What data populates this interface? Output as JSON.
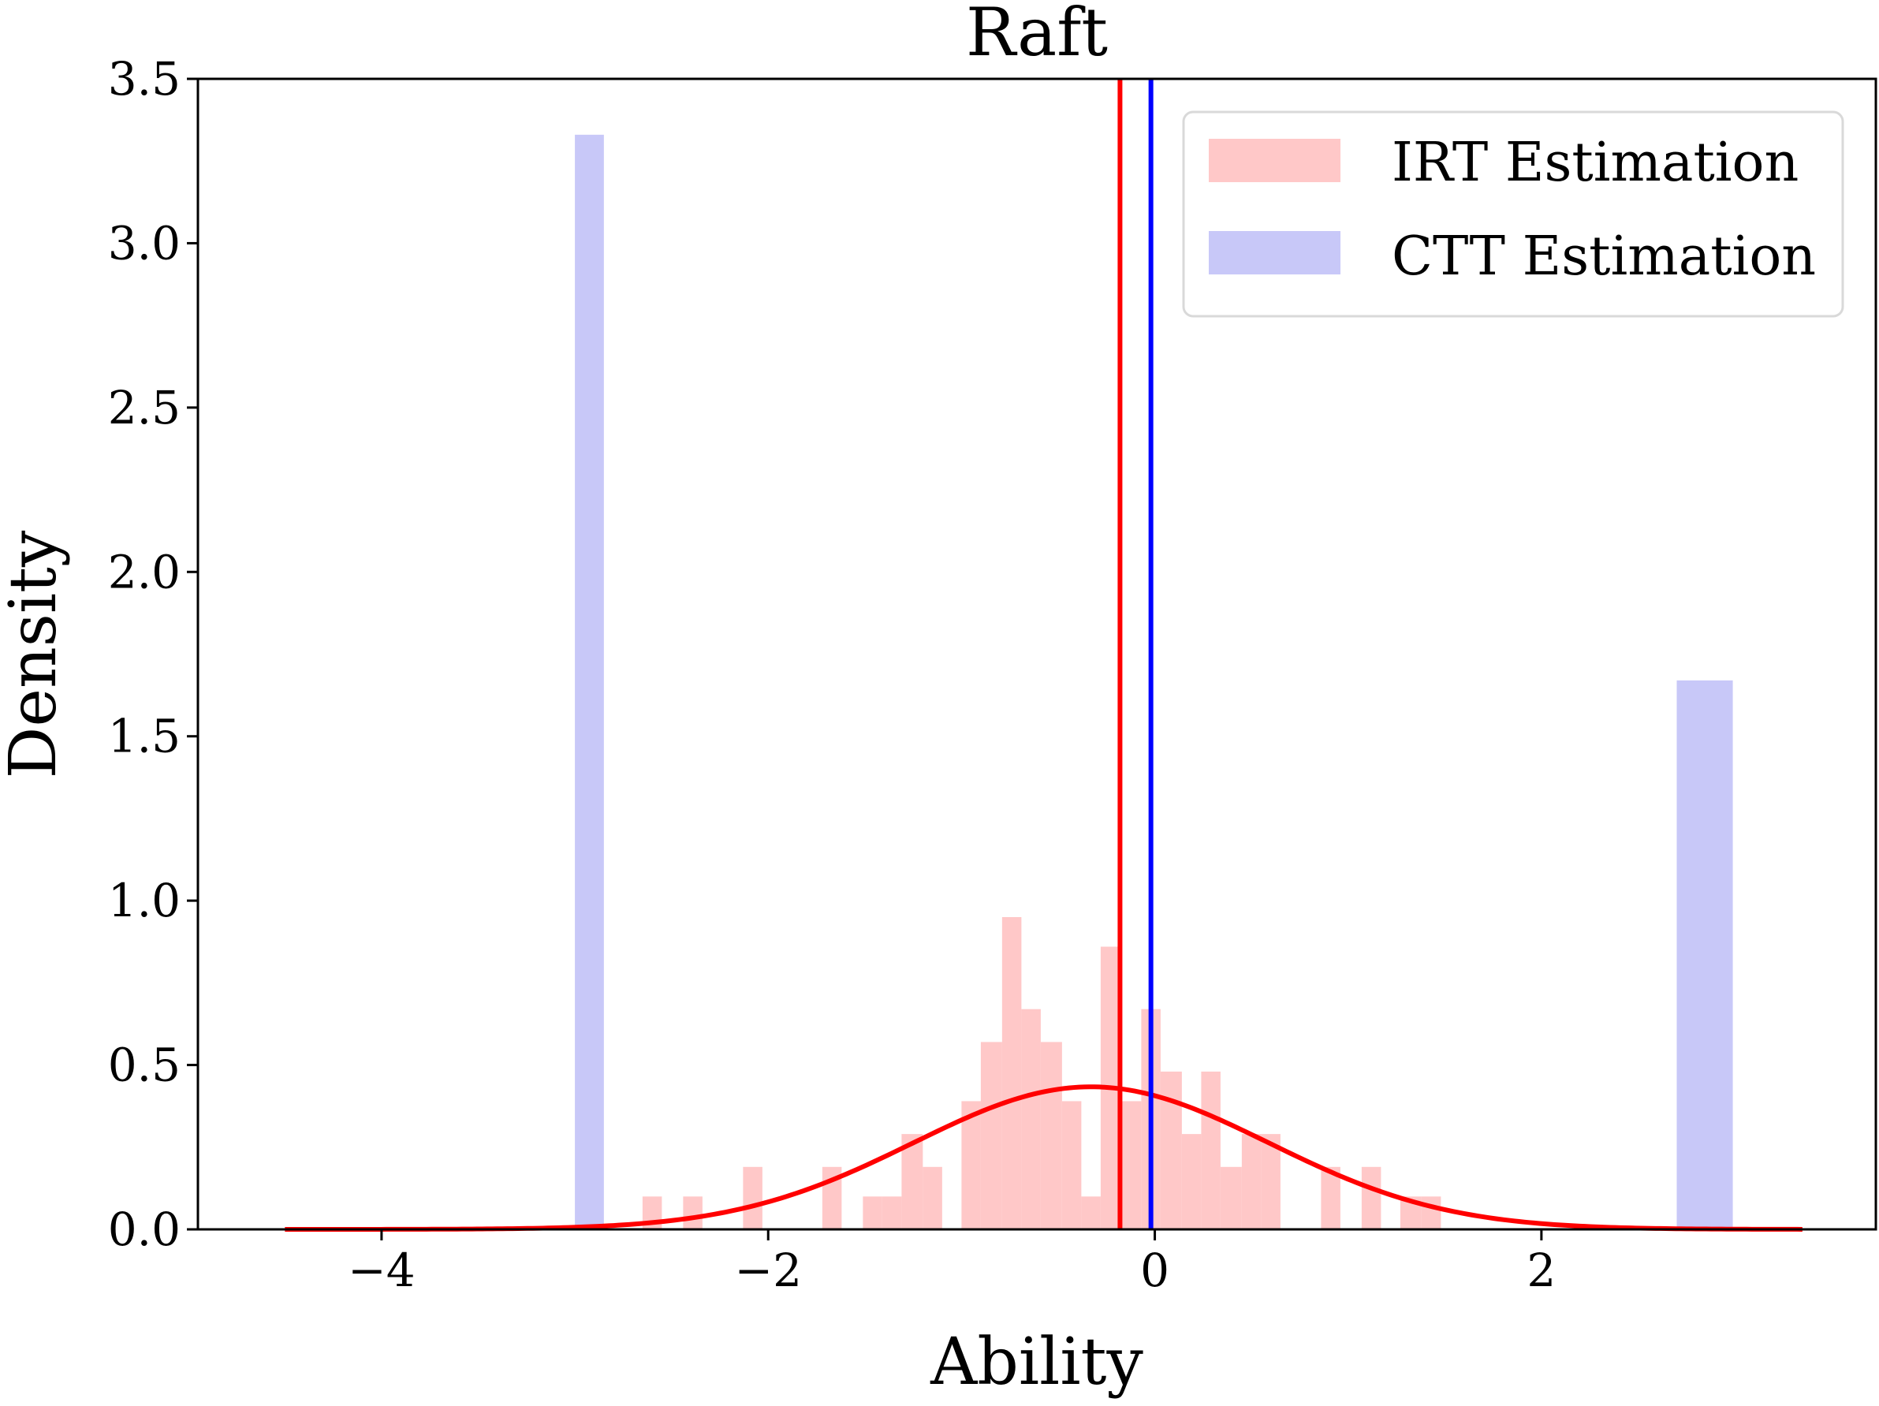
{
  "chart_data": {
    "type": "histogram",
    "title": "Raft",
    "xlabel": "Ability",
    "ylabel": "Density",
    "xlim": [
      -4.95,
      3.73
    ],
    "ylim": [
      0,
      3.5
    ],
    "x_ticks": [
      -4,
      -2,
      0,
      2
    ],
    "x_tick_labels": [
      "−4",
      "−2",
      "0",
      "2"
    ],
    "y_ticks": [
      0.0,
      0.5,
      1.0,
      1.5,
      2.0,
      2.5,
      3.0,
      3.5
    ],
    "y_tick_labels": [
      "0.0",
      "0.5",
      "1.0",
      "1.5",
      "2.0",
      "2.5",
      "3.0",
      "3.5"
    ],
    "grid": false,
    "legend_position": "top-right",
    "series": [
      {
        "name": "IRT Estimation",
        "kind": "histogram",
        "color": "#ffc8c8",
        "bins": [
          {
            "x0": -2.65,
            "x1": -2.55,
            "density": 0.1
          },
          {
            "x0": -2.44,
            "x1": -2.34,
            "density": 0.1
          },
          {
            "x0": -2.13,
            "x1": -2.03,
            "density": 0.19
          },
          {
            "x0": -1.72,
            "x1": -1.62,
            "density": 0.19
          },
          {
            "x0": -1.51,
            "x1": -1.41,
            "density": 0.1
          },
          {
            "x0": -1.41,
            "x1": -1.31,
            "density": 0.1
          },
          {
            "x0": -1.31,
            "x1": -1.2,
            "density": 0.29
          },
          {
            "x0": -1.2,
            "x1": -1.1,
            "density": 0.19
          },
          {
            "x0": -1.0,
            "x1": -0.9,
            "density": 0.39
          },
          {
            "x0": -0.9,
            "x1": -0.79,
            "density": 0.57
          },
          {
            "x0": -0.79,
            "x1": -0.69,
            "density": 0.95
          },
          {
            "x0": -0.69,
            "x1": -0.59,
            "density": 0.67
          },
          {
            "x0": -0.59,
            "x1": -0.48,
            "density": 0.57
          },
          {
            "x0": -0.48,
            "x1": -0.38,
            "density": 0.39
          },
          {
            "x0": -0.38,
            "x1": -0.28,
            "density": 0.1
          },
          {
            "x0": -0.28,
            "x1": -0.17,
            "density": 0.86
          },
          {
            "x0": -0.17,
            "x1": -0.07,
            "density": 0.39
          },
          {
            "x0": -0.07,
            "x1": 0.03,
            "density": 0.67
          },
          {
            "x0": 0.03,
            "x1": 0.14,
            "density": 0.48
          },
          {
            "x0": 0.14,
            "x1": 0.24,
            "density": 0.29
          },
          {
            "x0": 0.24,
            "x1": 0.34,
            "density": 0.48
          },
          {
            "x0": 0.34,
            "x1": 0.45,
            "density": 0.19
          },
          {
            "x0": 0.45,
            "x1": 0.55,
            "density": 0.29
          },
          {
            "x0": 0.55,
            "x1": 0.65,
            "density": 0.29
          },
          {
            "x0": 0.86,
            "x1": 0.96,
            "density": 0.19
          },
          {
            "x0": 1.07,
            "x1": 1.17,
            "density": 0.19
          },
          {
            "x0": 1.27,
            "x1": 1.38,
            "density": 0.1
          },
          {
            "x0": 1.38,
            "x1": 1.48,
            "density": 0.1
          }
        ]
      },
      {
        "name": "CTT Estimation",
        "kind": "histogram",
        "color": "#c8c8f8",
        "bins": [
          {
            "x0": -3.0,
            "x1": -2.85,
            "density": 3.33
          },
          {
            "x0": 2.7,
            "x1": 2.99,
            "density": 1.67
          }
        ]
      }
    ],
    "density_curve": {
      "color": "#ff0000",
      "distribution": "normal",
      "mean": -0.33,
      "sd": 0.92,
      "x_range": [
        -4.5,
        3.35
      ]
    },
    "vertical_lines": [
      {
        "x": -0.18,
        "color": "#ff0000"
      },
      {
        "x": -0.02,
        "color": "#0000ff"
      }
    ]
  }
}
